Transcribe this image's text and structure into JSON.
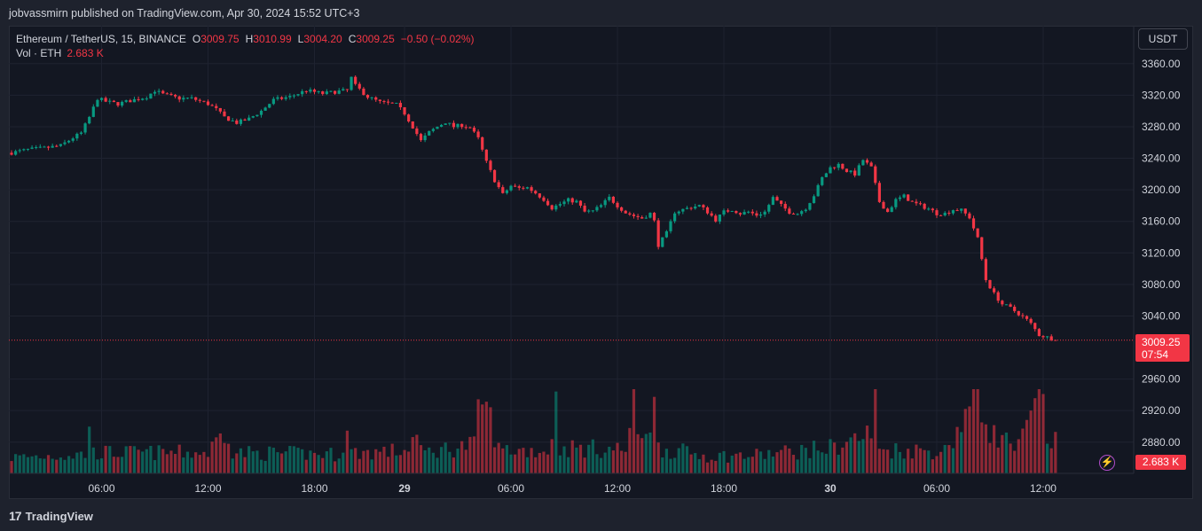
{
  "header": {
    "publisher_line": "jobvassmirn published on TradingView.com, Apr 30, 2024 15:52 UTC+3"
  },
  "legend": {
    "symbol": "Ethereum / TetherUS, 15, BINANCE",
    "open_label": "O",
    "open": "3009.75",
    "high_label": "H",
    "high": "3010.99",
    "low_label": "L",
    "low": "3004.20",
    "close_label": "C",
    "close": "3009.25",
    "change": "−0.50 (−0.02%)",
    "volume_label": "Vol · ETH",
    "volume": "2.683 K"
  },
  "toolbar": {
    "currency_button": "USDT"
  },
  "price_tag": {
    "price": "3009.25",
    "countdown": "07:54"
  },
  "volume_tag": "2.683 K",
  "footer": {
    "logo_glyph": "17",
    "brand": "TradingView"
  },
  "colors": {
    "up": "#089981",
    "down": "#f23645",
    "background": "#131722",
    "grid": "#1f2330"
  },
  "chart_data": {
    "type": "candlestick",
    "symbol": "ETHUSDT",
    "interval_minutes": 15,
    "price_axis": {
      "ticks": [
        3360,
        3320,
        3280,
        3240,
        3200,
        3160,
        3120,
        3080,
        3040,
        2960,
        2920,
        2880
      ]
    },
    "time_axis": {
      "ticks": [
        {
          "label": "06:00",
          "bold": false
        },
        {
          "label": "12:00",
          "bold": false
        },
        {
          "label": "18:00",
          "bold": false
        },
        {
          "label": "29",
          "bold": true
        },
        {
          "label": "06:00",
          "bold": false
        },
        {
          "label": "12:00",
          "bold": false
        },
        {
          "label": "18:00",
          "bold": false
        },
        {
          "label": "30",
          "bold": true
        },
        {
          "label": "06:00",
          "bold": false
        },
        {
          "label": "12:00",
          "bold": false
        }
      ]
    },
    "last_price": 3009.25,
    "price_path": [
      [
        0,
        3247
      ],
      [
        4,
        3251
      ],
      [
        8,
        3253
      ],
      [
        12,
        3256
      ],
      [
        15,
        3266
      ],
      [
        17,
        3272
      ],
      [
        19,
        3292
      ],
      [
        21,
        3316
      ],
      [
        23,
        3312
      ],
      [
        26,
        3309
      ],
      [
        29,
        3313
      ],
      [
        33,
        3318
      ],
      [
        35,
        3326
      ],
      [
        37,
        3321
      ],
      [
        41,
        3316
      ],
      [
        44,
        3316
      ],
      [
        48,
        3309
      ],
      [
        50,
        3302
      ],
      [
        52,
        3292
      ],
      [
        55,
        3285
      ],
      [
        58,
        3290
      ],
      [
        61,
        3300
      ],
      [
        64,
        3314
      ],
      [
        68,
        3318
      ],
      [
        72,
        3326
      ],
      [
        76,
        3322
      ],
      [
        80,
        3325
      ],
      [
        82,
        3326
      ],
      [
        83,
        3342
      ],
      [
        84,
        3332
      ],
      [
        87,
        3318
      ],
      [
        90,
        3311
      ],
      [
        94,
        3308
      ],
      [
        96,
        3297
      ],
      [
        98,
        3280
      ],
      [
        100,
        3262
      ],
      [
        102,
        3273
      ],
      [
        104,
        3280
      ],
      [
        106,
        3286
      ],
      [
        108,
        3280
      ],
      [
        110,
        3282
      ],
      [
        112,
        3279
      ],
      [
        114,
        3265
      ],
      [
        116,
        3235
      ],
      [
        118,
        3212
      ],
      [
        120,
        3194
      ],
      [
        122,
        3205
      ],
      [
        124,
        3202
      ],
      [
        126,
        3203
      ],
      [
        128,
        3196
      ],
      [
        130,
        3188
      ],
      [
        132,
        3177
      ],
      [
        134,
        3182
      ],
      [
        136,
        3187
      ],
      [
        138,
        3185
      ],
      [
        140,
        3172
      ],
      [
        142,
        3173
      ],
      [
        144,
        3180
      ],
      [
        146,
        3190
      ],
      [
        148,
        3180
      ],
      [
        150,
        3171
      ],
      [
        152,
        3167
      ],
      [
        154,
        3164
      ],
      [
        156,
        3170
      ],
      [
        157,
        3160
      ],
      [
        158,
        3130
      ],
      [
        160,
        3145
      ],
      [
        162,
        3172
      ],
      [
        164,
        3175
      ],
      [
        166,
        3178
      ],
      [
        168,
        3180
      ],
      [
        170,
        3172
      ],
      [
        172,
        3162
      ],
      [
        174,
        3172
      ],
      [
        176,
        3175
      ],
      [
        178,
        3170
      ],
      [
        180,
        3172
      ],
      [
        182,
        3168
      ],
      [
        184,
        3172
      ],
      [
        186,
        3190
      ],
      [
        188,
        3180
      ],
      [
        190,
        3172
      ],
      [
        192,
        3170
      ],
      [
        194,
        3177
      ],
      [
        196,
        3193
      ],
      [
        198,
        3215
      ],
      [
        200,
        3228
      ],
      [
        202,
        3232
      ],
      [
        204,
        3224
      ],
      [
        206,
        3220
      ],
      [
        208,
        3238
      ],
      [
        210,
        3228
      ],
      [
        212,
        3185
      ],
      [
        214,
        3172
      ],
      [
        216,
        3187
      ],
      [
        218,
        3192
      ],
      [
        220,
        3184
      ],
      [
        222,
        3180
      ],
      [
        224,
        3176
      ],
      [
        226,
        3170
      ],
      [
        228,
        3170
      ],
      [
        230,
        3175
      ],
      [
        232,
        3174
      ],
      [
        234,
        3165
      ],
      [
        236,
        3138
      ],
      [
        238,
        3086
      ],
      [
        240,
        3068
      ],
      [
        242,
        3055
      ],
      [
        244,
        3050
      ],
      [
        246,
        3043
      ],
      [
        248,
        3035
      ],
      [
        249,
        3030
      ],
      [
        251,
        3016
      ],
      [
        253,
        3013
      ],
      [
        254,
        3012
      ],
      [
        255,
        3009.25
      ]
    ],
    "volume_path": [
      [
        0,
        1
      ],
      [
        18,
        1.2
      ],
      [
        19,
        3.2
      ],
      [
        20,
        1.3
      ],
      [
        48,
        1.3
      ],
      [
        53,
        3
      ],
      [
        54,
        1.3
      ],
      [
        80,
        1.2
      ],
      [
        82,
        2.5
      ],
      [
        83,
        1.3
      ],
      [
        96,
        1.4
      ],
      [
        99,
        2.4
      ],
      [
        100,
        1.3
      ],
      [
        113,
        1.8
      ],
      [
        115,
        5
      ],
      [
        116,
        4
      ],
      [
        118,
        2.6
      ],
      [
        119,
        1.5
      ],
      [
        131,
        1.4
      ],
      [
        133,
        4.2
      ],
      [
        134,
        1.6
      ],
      [
        150,
        1.5
      ],
      [
        152,
        4
      ],
      [
        153,
        2.2
      ],
      [
        157,
        4
      ],
      [
        158,
        1.6
      ],
      [
        170,
        1.1
      ],
      [
        180,
        1.1
      ],
      [
        200,
        1.6
      ],
      [
        210,
        2.5
      ],
      [
        211,
        4.3
      ],
      [
        212,
        1.5
      ],
      [
        228,
        1.4
      ],
      [
        235,
        4.6
      ],
      [
        236,
        6
      ],
      [
        237,
        4
      ],
      [
        240,
        2.4
      ],
      [
        246,
        1.6
      ],
      [
        250,
        4
      ],
      [
        251,
        6.2
      ],
      [
        252,
        4.3
      ],
      [
        253,
        1.5
      ],
      [
        255,
        2.683
      ]
    ]
  }
}
